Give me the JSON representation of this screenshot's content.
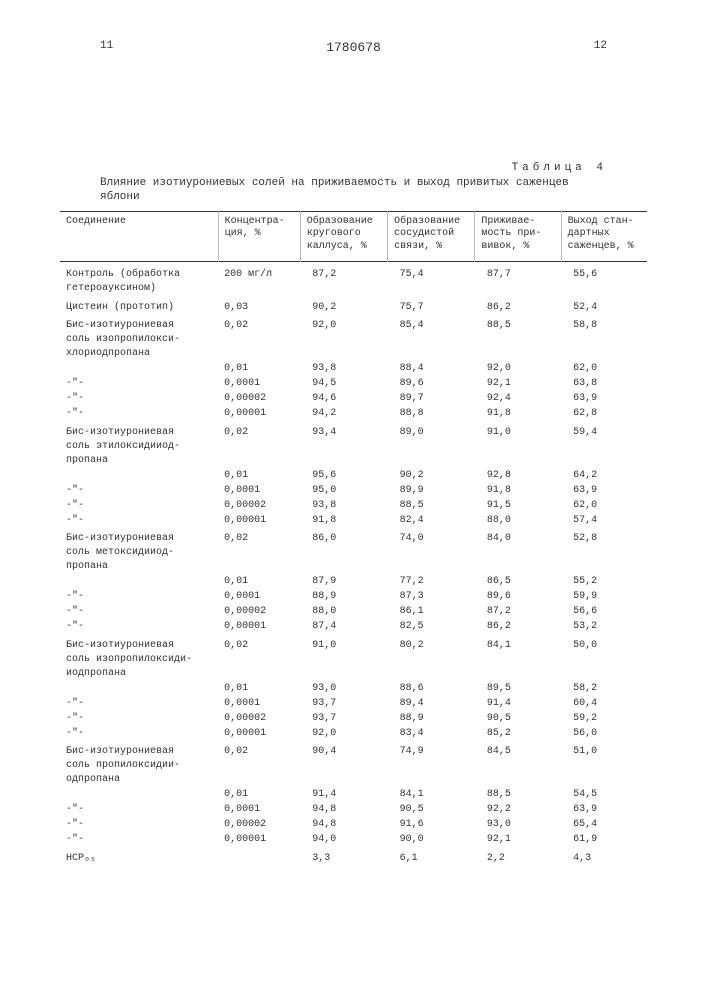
{
  "header": {
    "page_left": "11",
    "doc_number": "1780678",
    "page_right": "12"
  },
  "table_label": "Таблица 4",
  "caption": "Влияние изотиурониевых солей на приживаемость и выход привитых саженцев яблони",
  "columns": {
    "c1": "Соединение",
    "c2": "Концентра-\nция, %",
    "c3": "Образование\nкругового\nкаллуса, %",
    "c4": "Образование\nсосудистой\nсвязи, %",
    "c5": "Приживае-\nмость при-\nвивок, %",
    "c6": "Выход стан-\nдартных\nсаженцев, %"
  },
  "rows": [
    {
      "compound": "Контроль (обработка\nгетероауксином)",
      "conc": "200 мг/л",
      "v1": "87,2",
      "v2": "75,4",
      "v3": "87,7",
      "v4": "55,6",
      "gs": true
    },
    {
      "compound": "Цистеин (прототип)",
      "conc": "0,03",
      "v1": "90,2",
      "v2": "75,7",
      "v3": "86,2",
      "v4": "52,4",
      "gs": true
    },
    {
      "compound": "Бис-изотиурониевая\nсоль изопропилокси-\nхлориодпропана",
      "conc": "0,02",
      "v1": "92,0",
      "v2": "85,4",
      "v3": "88,5",
      "v4": "58,8",
      "gs": true
    },
    {
      "compound": "",
      "conc": "0,01",
      "v1": "93,8",
      "v2": "88,4",
      "v3": "92,0",
      "v4": "62,0"
    },
    {
      "compound": "-\"-",
      "conc": "0,0001",
      "v1": "94,5",
      "v2": "89,6",
      "v3": "92,1",
      "v4": "63,8"
    },
    {
      "compound": "-\"-",
      "conc": "0,00002",
      "v1": "94,6",
      "v2": "89,7",
      "v3": "92,4",
      "v4": "63,9"
    },
    {
      "compound": "-\"-",
      "conc": "0,00001",
      "v1": "94,2",
      "v2": "88,8",
      "v3": "91,8",
      "v4": "62,8"
    },
    {
      "compound": "Бис-изотиурониевая\nсоль этилоксидииод-\nпропана",
      "conc": "0,02",
      "v1": "93,4",
      "v2": "89,0",
      "v3": "91,0",
      "v4": "59,4",
      "gs": true
    },
    {
      "compound": "",
      "conc": "0,01",
      "v1": "95,6",
      "v2": "90,2",
      "v3": "92,8",
      "v4": "64,2"
    },
    {
      "compound": "-\"-",
      "conc": "0,0001",
      "v1": "95,0",
      "v2": "89,9",
      "v3": "91,8",
      "v4": "63,9"
    },
    {
      "compound": "-\"-",
      "conc": "0,00002",
      "v1": "93,8",
      "v2": "88,5",
      "v3": "91,5",
      "v4": "62,0"
    },
    {
      "compound": "-\"-",
      "conc": "0,00001",
      "v1": "91,8",
      "v2": "82,4",
      "v3": "88,0",
      "v4": "57,4"
    },
    {
      "compound": "Бис-изотиурониевая\nсоль метоксидииод-\nпропана",
      "conc": "0,02",
      "v1": "86,0",
      "v2": "74,0",
      "v3": "84,0",
      "v4": "52,8",
      "gs": true
    },
    {
      "compound": "",
      "conc": "0,01",
      "v1": "87,9",
      "v2": "77,2",
      "v3": "86,5",
      "v4": "55,2"
    },
    {
      "compound": "-\"-",
      "conc": "0,0001",
      "v1": "88,9",
      "v2": "87,3",
      "v3": "89,6",
      "v4": "59,9"
    },
    {
      "compound": "-\"-",
      "conc": "0,00002",
      "v1": "88,0",
      "v2": "86,1",
      "v3": "87,2",
      "v4": "56,6"
    },
    {
      "compound": "-\"-",
      "conc": "0,00001",
      "v1": "87,4",
      "v2": "82,5",
      "v3": "86,2",
      "v4": "53,2"
    },
    {
      "compound": "Бис-изотиурониевая\nсоль изопропилоксиди-\nиодпропана",
      "conc": "0,02",
      "v1": "91,0",
      "v2": "80,2",
      "v3": "84,1",
      "v4": "50,0",
      "gs": true
    },
    {
      "compound": "",
      "conc": "0,01",
      "v1": "93,0",
      "v2": "88,6",
      "v3": "89,5",
      "v4": "58,2"
    },
    {
      "compound": "-\"-",
      "conc": "0,0001",
      "v1": "93,7",
      "v2": "89,4",
      "v3": "91,4",
      "v4": "60,4"
    },
    {
      "compound": "-\"-",
      "conc": "0,00002",
      "v1": "93,7",
      "v2": "88,9",
      "v3": "90,5",
      "v4": "59,2"
    },
    {
      "compound": "-\"-",
      "conc": "0,00001",
      "v1": "92,0",
      "v2": "83,4",
      "v3": "85,2",
      "v4": "56,0"
    },
    {
      "compound": "Бис-изотиурониевая\nсоль пропилоксидии-\nодпропана",
      "conc": "0,02",
      "v1": "90,4",
      "v2": "74,9",
      "v3": "84,5",
      "v4": "51,0",
      "gs": true
    },
    {
      "compound": "",
      "conc": "0,01",
      "v1": "91,4",
      "v2": "84,1",
      "v3": "88,5",
      "v4": "54,5"
    },
    {
      "compound": "-\"-",
      "conc": "0,0001",
      "v1": "94,8",
      "v2": "90,5",
      "v3": "92,2",
      "v4": "63,9"
    },
    {
      "compound": "-\"-",
      "conc": "0,00002",
      "v1": "94,8",
      "v2": "91,6",
      "v3": "93,0",
      "v4": "65,4"
    },
    {
      "compound": "-\"-",
      "conc": "0,00001",
      "v1": "94,0",
      "v2": "90,0",
      "v3": "92,1",
      "v4": "61,9"
    },
    {
      "compound": "НСР₀₅",
      "conc": "",
      "v1": "3,3",
      "v2": "6,1",
      "v3": "2,2",
      "v4": "4,3",
      "gs": true
    }
  ]
}
